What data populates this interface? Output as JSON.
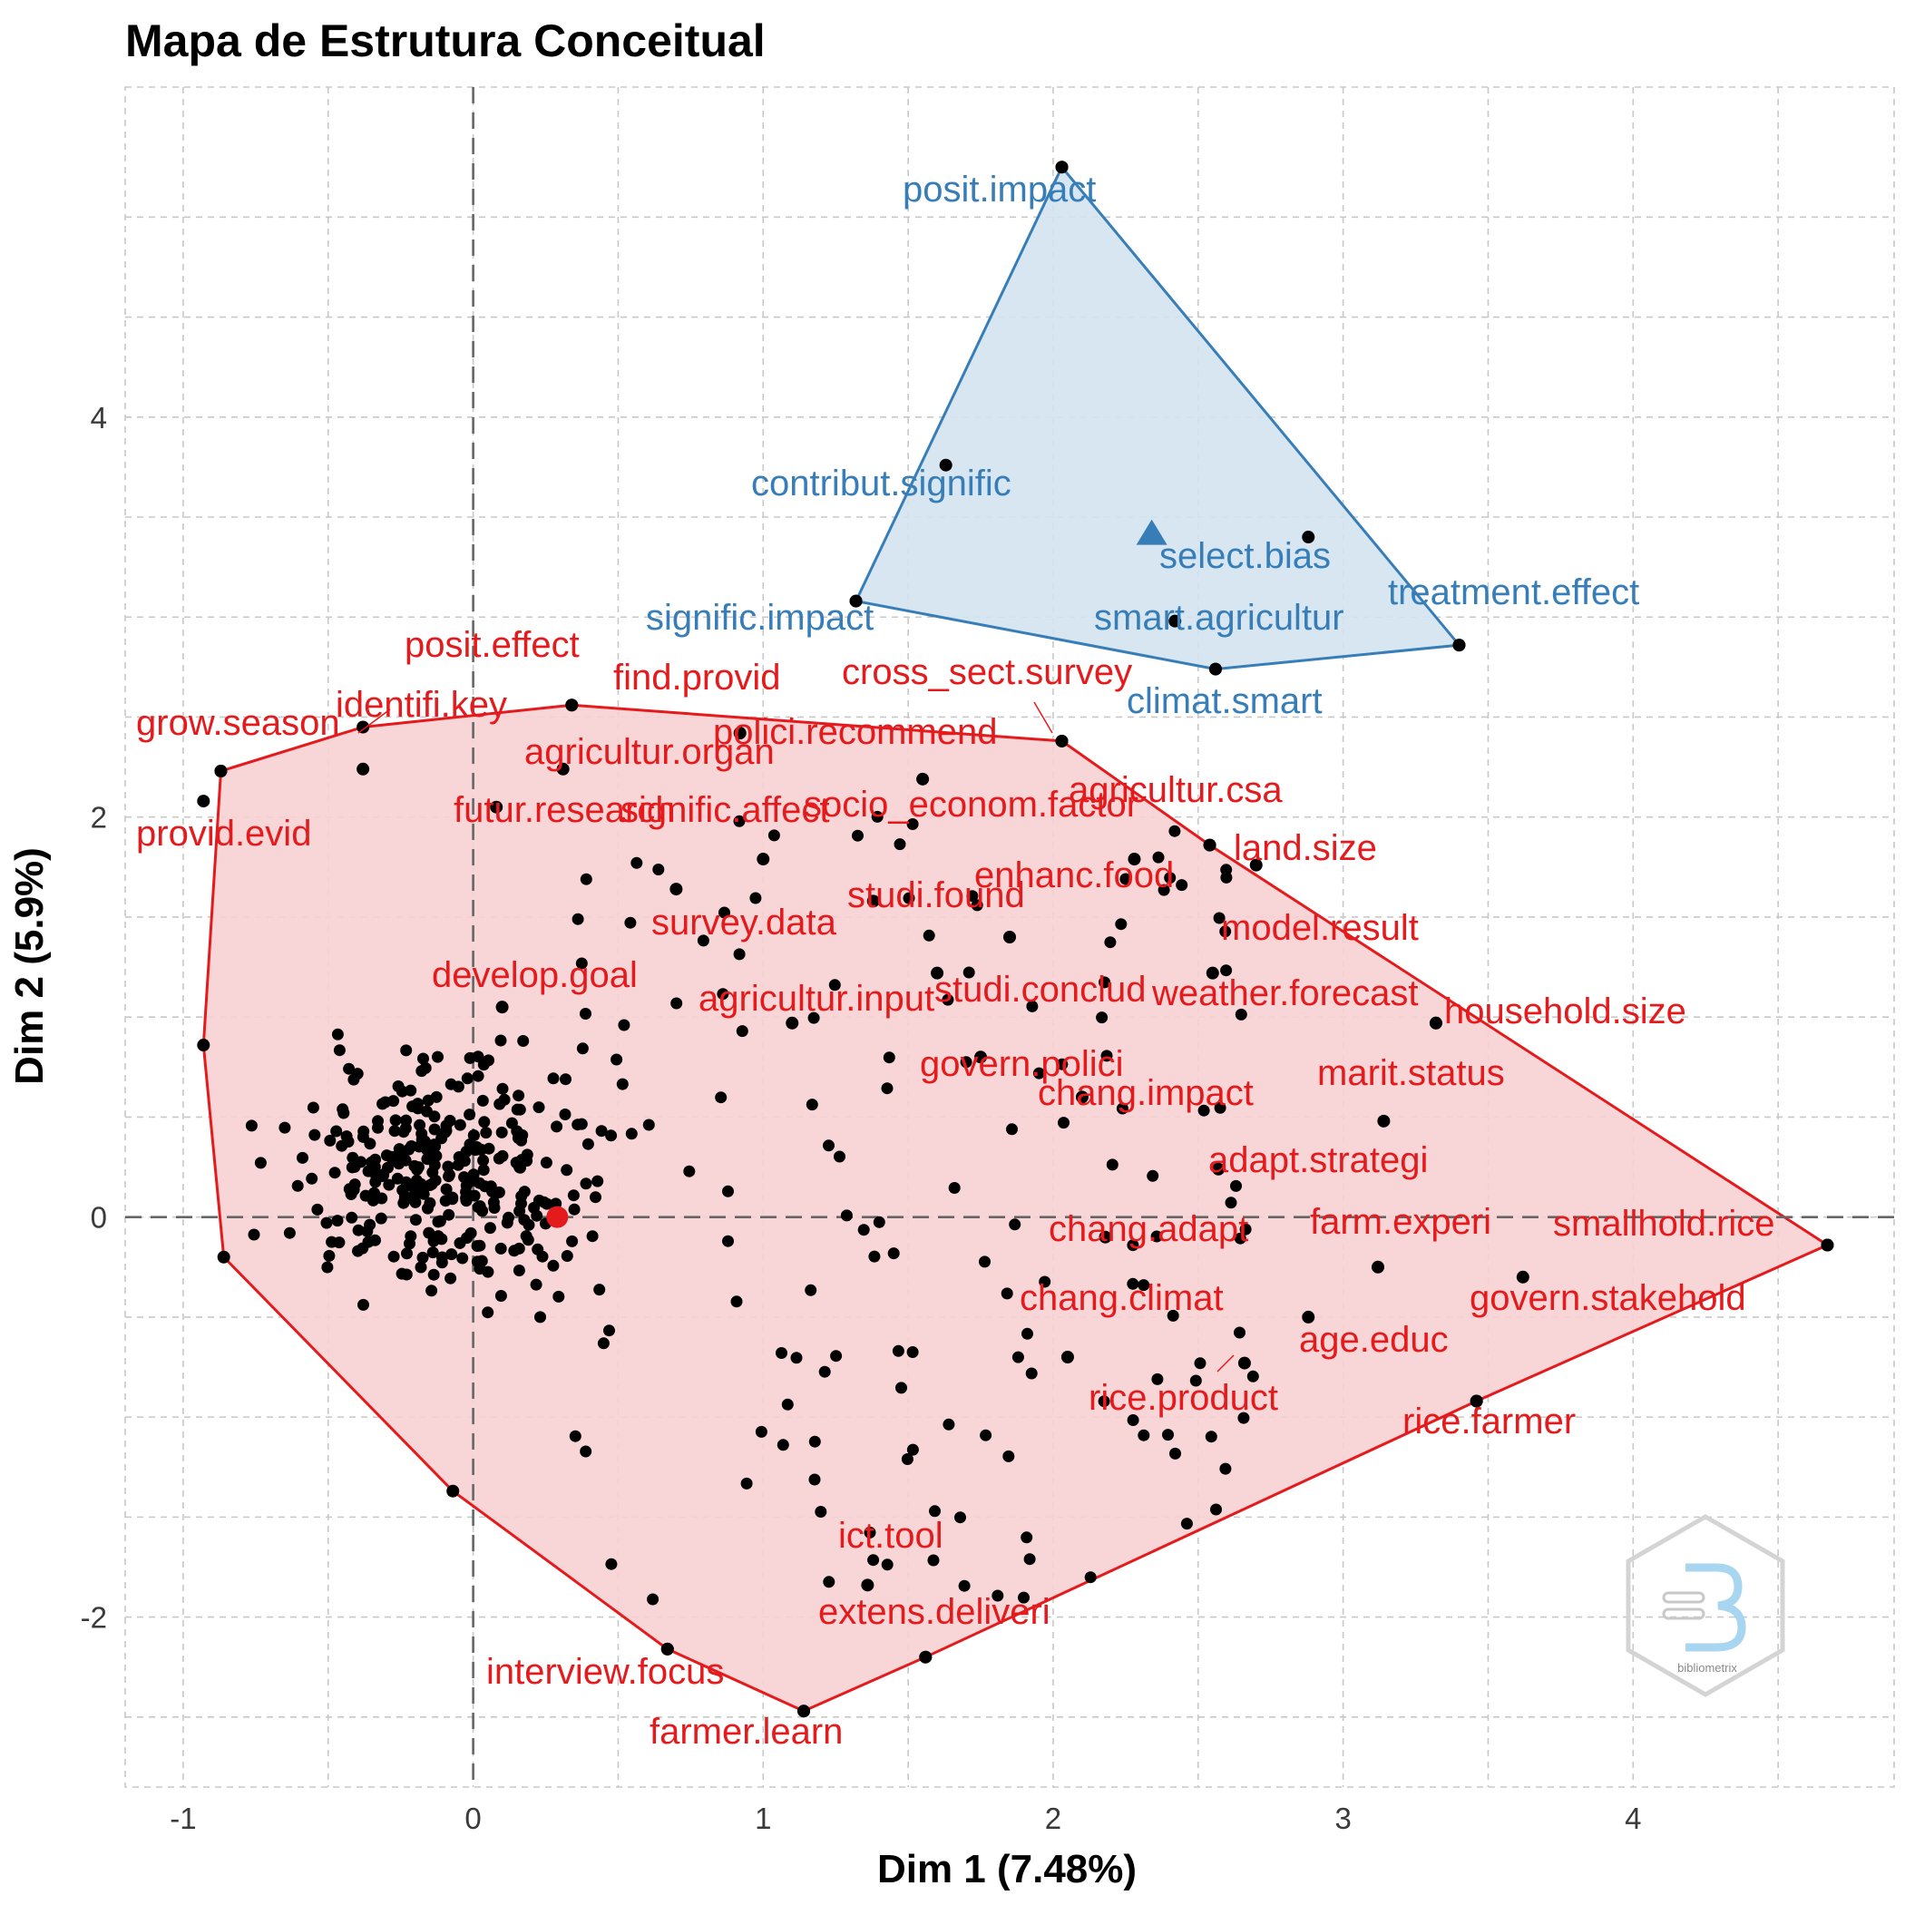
{
  "chart_data": {
    "type": "scatter",
    "title": "Mapa de Estrutura Conceitual",
    "xlabel": "Dim 1 (7.48%)",
    "ylabel": "Dim 2 (5.9%)",
    "xlim": [
      -1.2,
      4.9
    ],
    "ylim": [
      -2.85,
      5.65
    ],
    "x_ticks": [
      -1,
      0,
      1,
      2,
      3,
      4
    ],
    "y_ticks": [
      -2,
      0,
      2,
      4
    ],
    "zero_lines": true,
    "grid": true,
    "legend": "none",
    "watermark_text": "bibliometrix",
    "colors": {
      "cluster_1": "#e41a1c",
      "cluster_1_fill": "#f7d0d1",
      "cluster_2": "#377eb8",
      "cluster_2_fill": "#d4e3f1",
      "point": "#000000"
    },
    "clusters": [
      {
        "id": 2,
        "color": "#377eb8",
        "centroid": [
          2.34,
          3.42
        ],
        "hull": [
          [
            2.03,
            5.25
          ],
          [
            3.4,
            2.86
          ],
          [
            2.56,
            2.74
          ],
          [
            1.32,
            3.08
          ]
        ],
        "labeled_points": [
          {
            "x": 2.03,
            "y": 5.25,
            "label": "posit.impact"
          },
          {
            "x": 1.63,
            "y": 3.76,
            "label": "contribut.signific"
          },
          {
            "x": 2.88,
            "y": 3.4,
            "label": "select.bias"
          },
          {
            "x": 1.32,
            "y": 3.08,
            "label": "signific.impact"
          },
          {
            "x": 3.4,
            "y": 2.86,
            "label": "treatment.effect"
          },
          {
            "x": 2.56,
            "y": 2.74,
            "label": "climat.smart"
          },
          {
            "x": 2.42,
            "y": 2.98,
            "label": "smart.agricultur"
          }
        ]
      },
      {
        "id": 1,
        "color": "#e41a1c",
        "centroid": [
          0.29,
          0.0
        ],
        "hull": [
          [
            -0.87,
            2.23
          ],
          [
            -0.38,
            2.45
          ],
          [
            0.34,
            2.56
          ],
          [
            2.03,
            2.38
          ],
          [
            2.54,
            1.86
          ],
          [
            4.67,
            -0.14
          ],
          [
            3.46,
            -0.92
          ],
          [
            1.56,
            -2.2
          ],
          [
            1.14,
            -2.47
          ],
          [
            0.67,
            -2.16
          ],
          [
            -0.07,
            -1.37
          ],
          [
            -0.86,
            -0.2
          ],
          [
            -0.93,
            0.86
          ]
        ],
        "labeled_points": [
          {
            "x": 0.34,
            "y": 2.56,
            "label": "posit.effect"
          },
          {
            "x": -0.87,
            "y": 2.23,
            "label": "grow.season"
          },
          {
            "x": -0.38,
            "y": 2.24,
            "label": "identifi.key"
          },
          {
            "x": 0.92,
            "y": 2.42,
            "label": "find.provid"
          },
          {
            "x": 2.03,
            "y": 2.38,
            "label": "cross_sect.survey"
          },
          {
            "x": 1.55,
            "y": 2.19,
            "label": "polici.recommend"
          },
          {
            "x": 0.31,
            "y": 2.24,
            "label": "agricultur.organ"
          },
          {
            "x": -0.93,
            "y": 2.08,
            "label": "provid.evid"
          },
          {
            "x": 0.08,
            "y": 2.05,
            "label": "futur.research"
          },
          {
            "x": 1.0,
            "y": 1.79,
            "label": "signific.affect"
          },
          {
            "x": 2.28,
            "y": 1.79,
            "label": "socio_econom.factor"
          },
          {
            "x": 2.54,
            "y": 1.86,
            "label": "agricultur.csa"
          },
          {
            "x": 2.7,
            "y": 1.76,
            "label": "land.size"
          },
          {
            "x": 1.85,
            "y": 1.4,
            "label": "enhanc.food"
          },
          {
            "x": 1.38,
            "y": 1.58,
            "label": "studi.found"
          },
          {
            "x": 0.7,
            "y": 1.64,
            "label": "survey.data"
          },
          {
            "x": 2.55,
            "y": 1.22,
            "label": "model.result"
          },
          {
            "x": 0.1,
            "y": 1.05,
            "label": "develop.goal"
          },
          {
            "x": 1.6,
            "y": 1.22,
            "label": "studi.conclud"
          },
          {
            "x": 1.1,
            "y": 0.97,
            "label": "agricultur.input"
          },
          {
            "x": 3.32,
            "y": 0.97,
            "label": "weather.forecast"
          },
          {
            "x": 3.32,
            "y": 0.97,
            "label": "household.size"
          },
          {
            "x": 1.75,
            "y": 0.8,
            "label": "govern.polici"
          },
          {
            "x": 3.14,
            "y": 0.48,
            "label": "marit.status"
          },
          {
            "x": 2.1,
            "y": 0.6,
            "label": "chang.impact"
          },
          {
            "x": 2.57,
            "y": 0.24,
            "label": "adapt.strategi"
          },
          {
            "x": 3.12,
            "y": -0.25,
            "label": "farm.experi"
          },
          {
            "x": 4.67,
            "y": -0.14,
            "label": "smallhold.rice"
          },
          {
            "x": 2.18,
            "y": -0.1,
            "label": "chang.adapt"
          },
          {
            "x": 3.62,
            "y": -0.3,
            "label": "govern.stakehold"
          },
          {
            "x": 2.05,
            "y": -0.7,
            "label": "chang.climat"
          },
          {
            "x": 2.88,
            "y": -0.5,
            "label": "age.educ"
          },
          {
            "x": 2.66,
            "y": -0.73,
            "label": "rice.product"
          },
          {
            "x": 3.46,
            "y": -0.92,
            "label": "rice.farmer"
          },
          {
            "x": 1.36,
            "y": -1.84,
            "label": "ict.tool"
          },
          {
            "x": 1.56,
            "y": -2.2,
            "label": "extens.deliveri"
          },
          {
            "x": 0.67,
            "y": -2.16,
            "label": "interview.focus"
          },
          {
            "x": 1.14,
            "y": -2.47,
            "label": "farmer.learn"
          }
        ]
      }
    ]
  }
}
